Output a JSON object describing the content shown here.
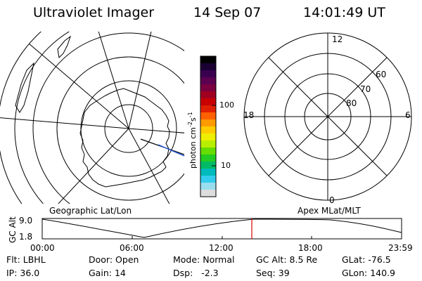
{
  "header": {
    "title": "Ultraviolet Imager",
    "date": "14 Sep 07",
    "time": "14:01:49 UT"
  },
  "colorbar": {
    "unit_label": "photon cm",
    "unit_exponent": "-2",
    "unit_s": "s",
    "unit_s_exponent": "-1",
    "ticks": [
      "100",
      "10"
    ],
    "colors": [
      "#000000",
      "#1a0033",
      "#3a0050",
      "#5c0050",
      "#7a0040",
      "#a00020",
      "#c80000",
      "#e02000",
      "#ff6000",
      "#ff9a00",
      "#ffcc00",
      "#eeee00",
      "#b8ee00",
      "#66dd00",
      "#22cc22",
      "#00bb66",
      "#00bbbb",
      "#33ccee",
      "#99ddee",
      "#dddddd"
    ]
  },
  "geo_panel": {
    "label": "Geographic Lat/Lon",
    "line_color": "#2255dd"
  },
  "mlt_panel": {
    "label": "Apex MLat/MLT",
    "hour_labels": {
      "top": "12",
      "left": "18",
      "right": "6",
      "bottom": "0"
    },
    "lat_labels": [
      "60",
      "70",
      "80"
    ]
  },
  "orbit": {
    "axis_label": "GC Alt",
    "y_ticks": [
      "9.0",
      "1.8"
    ],
    "x_ticks": [
      "00:00",
      "06:00",
      "12:00",
      "18:00",
      "23:59"
    ],
    "marker_color": "#dd0000"
  },
  "status": {
    "row1": [
      {
        "label": "Flt:",
        "value": "LBHL"
      },
      {
        "label": "Door:",
        "value": "Open"
      },
      {
        "label": "Mode:",
        "value": "Normal"
      },
      {
        "label": "GC Alt:",
        "value": "8.5 Re"
      },
      {
        "label": "GLat:",
        "value": "-76.5"
      }
    ],
    "row2": [
      {
        "label": "IP:",
        "value": "36.0"
      },
      {
        "label": "Gain:",
        "value": "14"
      },
      {
        "label": "Dsp:",
        "value": "-2.3"
      },
      {
        "label": "Seq:",
        "value": "39"
      },
      {
        "label": "GLon:",
        "value": "140.9"
      }
    ]
  }
}
